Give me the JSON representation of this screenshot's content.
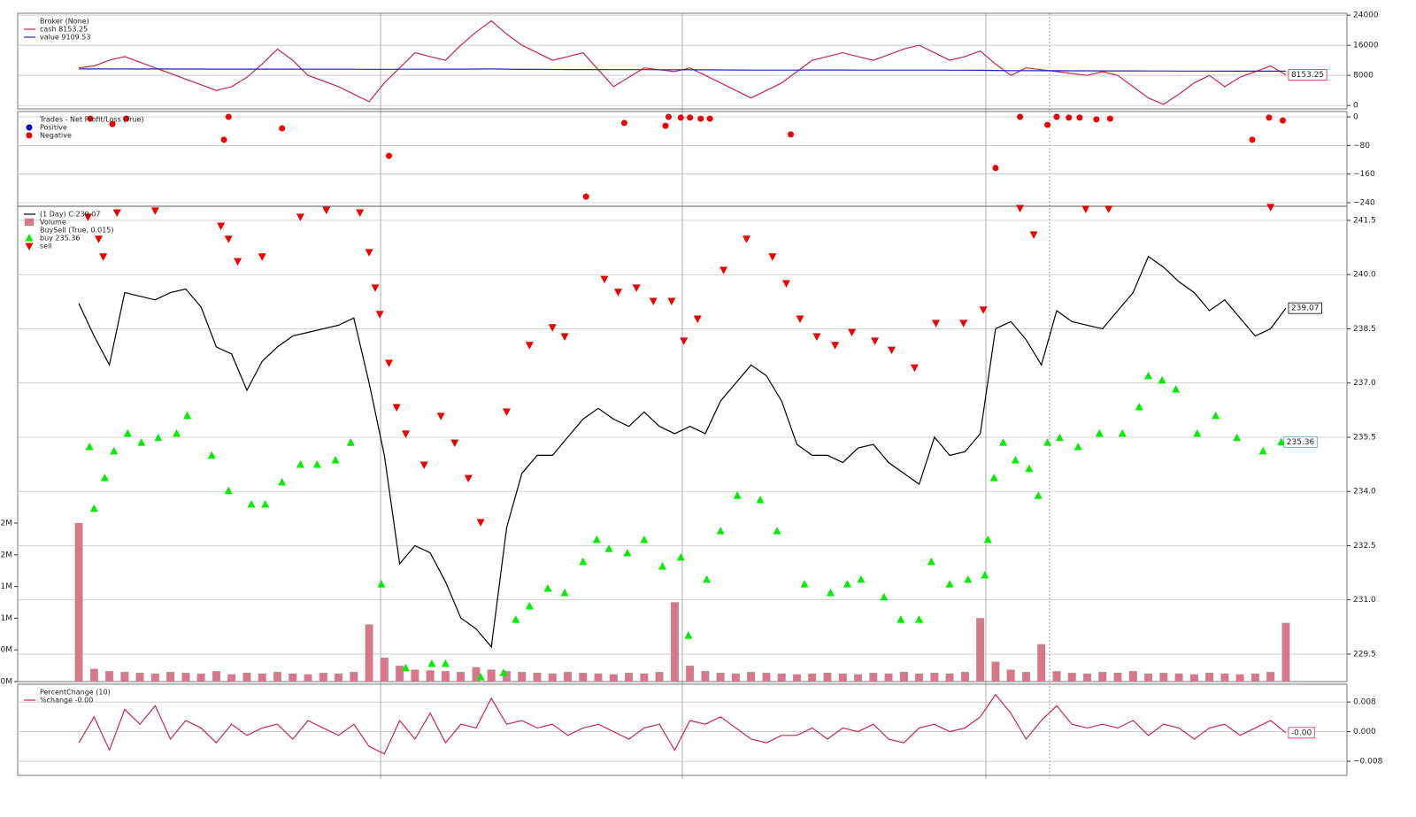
{
  "chart_data": [
    {
      "type": "line",
      "title": "Broker (None)",
      "xlim": [
        -4,
        83
      ],
      "ylim": [
        -900,
        24500
      ],
      "yticks": [
        0,
        8000,
        16000,
        24000
      ],
      "grid": true,
      "series": [
        {
          "name": "cash 8153.25",
          "type": "line",
          "color": "#c8284f",
          "last_label": "8153.25",
          "values": [
            10000,
            10500,
            12000,
            13000,
            11500,
            10000,
            8500,
            7000,
            5500,
            4000,
            5000,
            7500,
            11000,
            15000,
            12000,
            8000,
            6500,
            5000,
            3000,
            1000,
            6000,
            10000,
            14000,
            13000,
            12000,
            16000,
            19500,
            22500,
            19000,
            16000,
            14000,
            12000,
            13000,
            14000,
            9500,
            5000,
            7500,
            10000,
            9500,
            9000,
            10000,
            8000,
            6000,
            4000,
            2000,
            4000,
            6000,
            9000,
            12000,
            13000,
            14000,
            13000,
            12000,
            13500,
            15000,
            16000,
            14000,
            12000,
            13000,
            14500,
            11000,
            8000,
            10000,
            9500,
            9000,
            8500,
            8000,
            9000,
            8000,
            5000,
            2000,
            300,
            3000,
            6000,
            8000,
            5000,
            7500,
            9000,
            10500,
            8153.25
          ]
        },
        {
          "name": "value 9109.53",
          "type": "line",
          "color": "#2222cc",
          "values": [
            9700,
            9700,
            9710,
            9700,
            9690,
            9700,
            9690,
            9680,
            9680,
            9670,
            9660,
            9660,
            9650,
            9650,
            9650,
            9640,
            9640,
            9630,
            9630,
            9620,
            9620,
            9630,
            9640,
            9650,
            9660,
            9670,
            9690,
            9700,
            9650,
            9600,
            9580,
            9560,
            9550,
            9550,
            9540,
            9520,
            9510,
            9510,
            9500,
            9490,
            9480,
            9470,
            9450,
            9430,
            9410,
            9400,
            9400,
            9410,
            9420,
            9420,
            9420,
            9410,
            9400,
            9400,
            9400,
            9400,
            9390,
            9380,
            9370,
            9360,
            9300,
            9250,
            9250,
            9240,
            9230,
            9220,
            9210,
            9200,
            9190,
            9180,
            9170,
            9160,
            9150,
            9150,
            9140,
            9130,
            9120,
            9120,
            9115,
            9109.53
          ]
        }
      ]
    },
    {
      "type": "scatter",
      "title": "Trades - Net Profit/Loss (True)",
      "xlim": [
        -4,
        83
      ],
      "ylim": [
        -250,
        15
      ],
      "yticks": [
        0,
        {
          "value": -80,
          "label": "−80"
        },
        {
          "value": -160,
          "label": "−160"
        },
        {
          "value": -240,
          "label": "−240"
        }
      ],
      "grid": true,
      "series": [
        {
          "name": "Positive",
          "type": "scatter",
          "marker": "circle",
          "color": "#0000cc",
          "x": [],
          "values": []
        },
        {
          "name": "Negative",
          "type": "scatter",
          "marker": "circle",
          "color": "#ee0000",
          "x": [
            0.75,
            2.2,
            3.1,
            9.5,
            9.8,
            13.3,
            20.3,
            33.2,
            35.7,
            38.4,
            38.6,
            39.4,
            40,
            40.7,
            41.3,
            46.6,
            60,
            61.6,
            63.4,
            64,
            64.8,
            65.5,
            66.6,
            67.5,
            76.8,
            77.9,
            78.8
          ],
          "values": [
            -5,
            -20,
            -5,
            -64,
            0,
            -32,
            -109,
            -223,
            -17,
            -25,
            0,
            -2,
            -2,
            -5,
            -5,
            -49,
            -143,
            0,
            -22,
            0,
            -2,
            -2,
            -7,
            -5,
            -64,
            -2,
            -10
          ]
        }
      ]
    },
    {
      "type": "combo",
      "xlim": [
        -4,
        83
      ],
      "ylim": [
        228.74,
        241.89
      ],
      "yticks": [
        229.5,
        {
          "value": 231,
          "label": "231.0"
        },
        232.5,
        {
          "value": 234,
          "label": "234.0"
        },
        235.5,
        {
          "value": 237,
          "label": "237.0"
        },
        238.5,
        {
          "value": 240,
          "label": "240.0"
        },
        241.5
      ],
      "y2lim": [
        0,
        6000000
      ],
      "y2ticks": [
        {
          "value": 0,
          "label": "0M"
        },
        {
          "value": 400000,
          "label": "0M"
        },
        {
          "value": 800000,
          "label": "1M"
        },
        {
          "value": 1200000,
          "label": "1M"
        },
        {
          "value": 1600000,
          "label": "2M"
        },
        {
          "value": 2000000,
          "label": "2M"
        }
      ],
      "grid": true,
      "group_title": "BuySell (True, 0.015)",
      "series": [
        {
          "name": "(1 Day) C:239.07",
          "type": "line",
          "color": "#000000",
          "last_label": "239.07",
          "values": [
            239.2,
            238.3,
            237.5,
            239.5,
            239.4,
            239.3,
            239.5,
            239.6,
            239.1,
            238.0,
            237.8,
            236.8,
            237.6,
            238.0,
            238.3,
            238.4,
            238.5,
            238.6,
            238.8,
            237,
            235.0,
            232.0,
            232.5,
            232.3,
            231.5,
            230.5,
            230.2,
            229.7,
            233,
            234.5,
            235.0,
            235.0,
            235.5,
            236,
            236.3,
            236.0,
            235.8,
            236.2,
            235.8,
            235.6,
            235.8,
            235.6,
            236.5,
            237.0,
            237.5,
            237.2,
            236.5,
            235.3,
            235.0,
            235.0,
            234.8,
            235.2,
            235.3,
            234.8,
            234.5,
            234.2,
            235.5,
            235.0,
            235.1,
            235.6,
            238.5,
            238.7,
            238.2,
            237.5,
            239.0,
            238.7,
            238.6,
            238.5,
            239.0,
            239.5,
            240.5,
            240.2,
            239.8,
            239.5,
            239.0,
            239.3,
            238.8,
            238.3,
            238.5,
            239.07
          ]
        },
        {
          "name": "Volume",
          "type": "bar",
          "axis": "y2",
          "color": "#d9778a",
          "values": [
            2000000,
            160000,
            130000,
            120000,
            110000,
            100000,
            120000,
            110000,
            100000,
            130000,
            90000,
            110000,
            100000,
            120000,
            100000,
            90000,
            110000,
            100000,
            120000,
            720000,
            300000,
            200000,
            150000,
            140000,
            130000,
            120000,
            180000,
            150000,
            130000,
            120000,
            110000,
            100000,
            120000,
            110000,
            100000,
            90000,
            110000,
            100000,
            120000,
            1000000,
            200000,
            130000,
            110000,
            100000,
            120000,
            110000,
            100000,
            90000,
            100000,
            110000,
            100000,
            90000,
            110000,
            100000,
            120000,
            100000,
            110000,
            100000,
            120000,
            800000,
            250000,
            150000,
            120000,
            470000,
            130000,
            110000,
            100000,
            120000,
            110000,
            130000,
            100000,
            110000,
            100000,
            90000,
            110000,
            100000,
            90000,
            100000,
            120000,
            740000
          ]
        },
        {
          "name": "buy 235.36",
          "type": "scatter",
          "marker": "up",
          "color": "#00ee00",
          "last_label": "235.36",
          "x": [
            0.7,
            1.0,
            1.7,
            2.3,
            3.2,
            4.1,
            5.2,
            6.4,
            7.1,
            8.7,
            9.8,
            11.3,
            12.2,
            13.3,
            14.5,
            15.6,
            16.8,
            17.8,
            19.8,
            21.4,
            23.1,
            24.0,
            26.3,
            27.8,
            28.6,
            29.5,
            30.7,
            31.8,
            33.0,
            33.9,
            34.7,
            35.9,
            37.0,
            38.2,
            39.4,
            39.9,
            41.1,
            42.0,
            43.1,
            44.6,
            45.7,
            47.5,
            49.2,
            50.3,
            51.2,
            52.7,
            53.8,
            55.0,
            55.8,
            57.0,
            58.2,
            59.3,
            59.5,
            59.9,
            60.5,
            61.3,
            62.2,
            62.8,
            63.4,
            64.2,
            65.4,
            66.8,
            68.3,
            69.4,
            70.0,
            70.9,
            71.8,
            73.2,
            74.4,
            75.8,
            77.5,
            78.7
          ],
          "values": [
            235.23,
            233.52,
            234.37,
            235.11,
            235.6,
            235.35,
            235.48,
            235.6,
            236.09,
            234.99,
            234.01,
            233.64,
            233.64,
            234.25,
            234.74,
            234.74,
            234.86,
            235.35,
            231.43,
            229.11,
            229.23,
            229.23,
            228.86,
            228.98,
            230.45,
            230.82,
            231.31,
            231.19,
            232.05,
            232.66,
            232.41,
            232.29,
            232.66,
            231.92,
            232.17,
            230.01,
            231.56,
            232.9,
            233.88,
            233.76,
            232.9,
            231.43,
            231.19,
            231.43,
            231.56,
            231.07,
            230.45,
            230.45,
            232.05,
            231.43,
            231.56,
            231.68,
            232.66,
            234.37,
            235.35,
            234.86,
            234.62,
            233.88,
            235.35,
            235.48,
            235.23,
            235.6,
            235.6,
            236.33,
            237.19,
            237.07,
            236.82,
            235.6,
            236.09,
            235.48,
            235.11,
            235.36
          ]
        },
        {
          "name": "sell",
          "type": "scatter",
          "marker": "down",
          "color": "#ee0000",
          "x": [
            0.6,
            1.3,
            1.6,
            2.5,
            5.0,
            9.3,
            9.8,
            10.4,
            12.0,
            14.5,
            16.2,
            18.4,
            19.0,
            19.4,
            19.7,
            20.3,
            20.8,
            21.4,
            22.6,
            23.7,
            24.6,
            25.5,
            26.3,
            28.0,
            29.5,
            31.0,
            31.8,
            34.4,
            35.3,
            36.5,
            37.6,
            38.8,
            39.6,
            40.5,
            42.2,
            43.7,
            45.4,
            46.3,
            47.2,
            48.3,
            49.5,
            50.6,
            52.1,
            53.2,
            54.7,
            56.1,
            57.9,
            59.2,
            61.6,
            62.5,
            65.9,
            67.4,
            78.0
          ],
          "values": [
            241.6,
            240.99,
            240.5,
            241.72,
            241.77,
            241.35,
            240.99,
            240.37,
            240.5,
            241.6,
            241.79,
            241.72,
            240.62,
            239.64,
            238.91,
            237.56,
            236.33,
            235.6,
            234.74,
            236.09,
            235.35,
            234.37,
            233.15,
            236.21,
            238.05,
            238.54,
            238.29,
            239.88,
            239.52,
            239.64,
            239.27,
            239.27,
            238.17,
            238.78,
            240.13,
            240.99,
            240.5,
            239.76,
            238.78,
            238.29,
            238.05,
            238.41,
            238.17,
            237.92,
            237.43,
            238.66,
            238.66,
            239.03,
            241.84,
            241.11,
            241.82,
            241.82,
            241.87
          ]
        }
      ]
    },
    {
      "type": "line",
      "title": "PercentChange (10)",
      "xlim": [
        -4,
        83
      ],
      "ylim": [
        -0.0118,
        0.0128
      ],
      "yticks": [
        0.008,
        {
          "value": 0,
          "label": "0.000"
        },
        {
          "value": -0.008,
          "label": "−0.008"
        }
      ],
      "grid": true,
      "series": [
        {
          "name": "%change -0.00",
          "type": "line",
          "color": "#c8284f",
          "last_label": "-0.00",
          "values": [
            -0.003,
            0.004,
            -0.005,
            0.006,
            0.002,
            0.007,
            -0.002,
            0.003,
            0.001,
            -0.003,
            0.002,
            -0.001,
            0.001,
            0.002,
            -0.002,
            0.003,
            0.001,
            -0.001,
            0.002,
            -0.004,
            -0.006,
            0.003,
            -0.002,
            0.005,
            -0.003,
            0.002,
            0.001,
            0.009,
            0.002,
            0.003,
            0.001,
            0.002,
            -0.001,
            0.001,
            0.002,
            0.0,
            -0.002,
            0.001,
            0.002,
            -0.005,
            0.003,
            0.002,
            0.004,
            0.001,
            -0.002,
            -0.003,
            -0.001,
            -0.001,
            0.001,
            -0.002,
            0.001,
            0.0,
            0.002,
            -0.002,
            -0.003,
            0.001,
            0.002,
            0.0,
            0.001,
            0.004,
            0.01,
            0.005,
            -0.002,
            0.003,
            0.007,
            0.002,
            0.001,
            0.002,
            0.001,
            0.003,
            -0.001,
            0.002,
            0.001,
            -0.002,
            0.001,
            0.002,
            -0.001,
            0.001,
            0.003,
            -0.0003
          ]
        }
      ]
    }
  ]
}
